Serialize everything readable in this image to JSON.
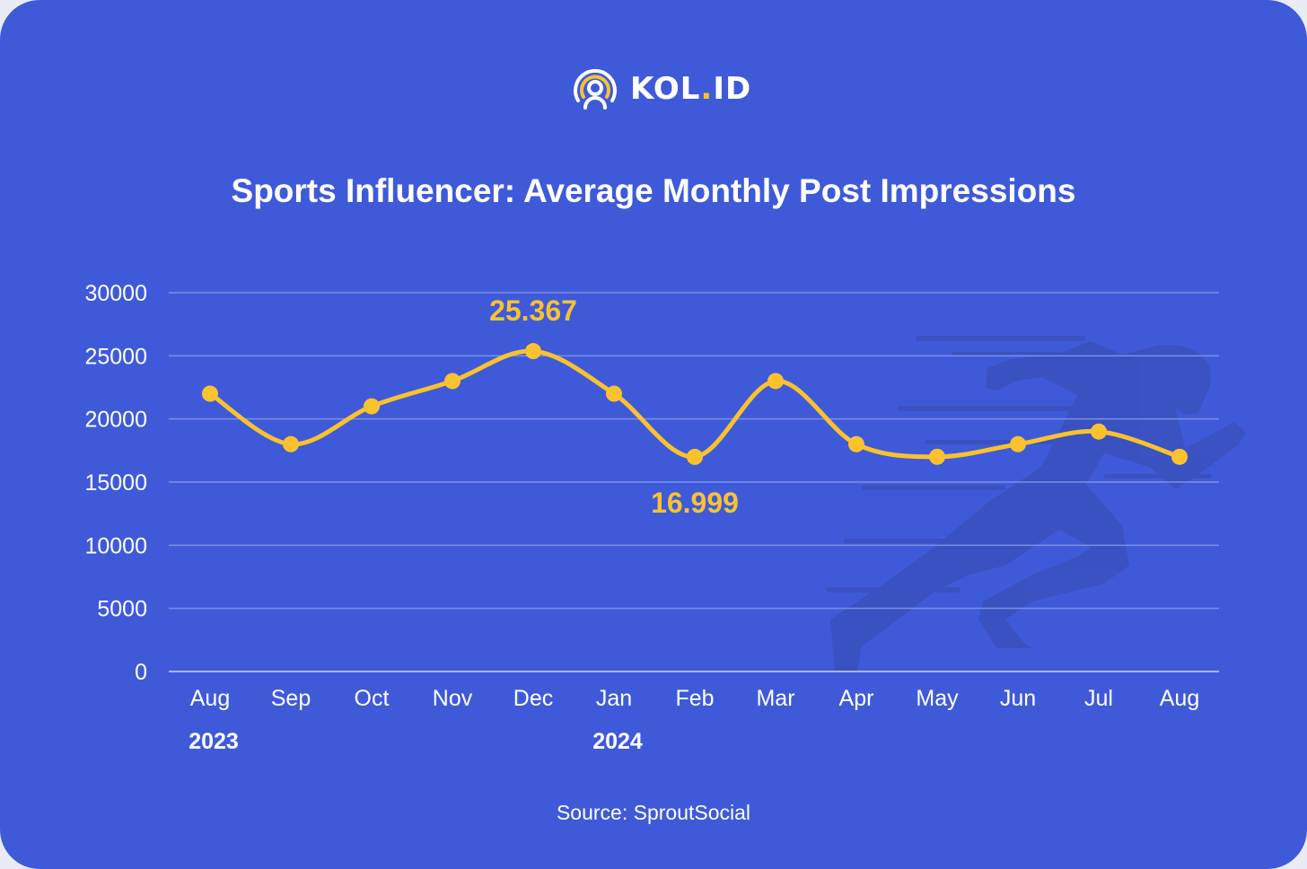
{
  "brand": {
    "name_main": "KOL",
    "name_dot": ".",
    "name_end": "ID",
    "logo_text": "KOL.ID"
  },
  "source": "Source: SproutSocial",
  "colors": {
    "background": "#3f5ad9",
    "line": "#f9c22e",
    "grid": "#7b8fe6",
    "text": "#ffffff",
    "silhouette": "#3a51bf"
  },
  "chart_data": {
    "type": "line",
    "title": "Sports Influencer: Average Monthly Post Impressions",
    "xlabel": "",
    "ylabel": "",
    "categories": [
      "Aug",
      "Sep",
      "Oct",
      "Nov",
      "Dec",
      "Jan",
      "Feb",
      "Mar",
      "Apr",
      "May",
      "Jun",
      "Jul",
      "Aug"
    ],
    "year_labels": [
      {
        "index": 0,
        "label": "2023"
      },
      {
        "index": 5,
        "label": "2024"
      }
    ],
    "series": [
      {
        "name": "Average Monthly Post Impressions",
        "values": [
          22000,
          18000,
          21000,
          23000,
          25367,
          22000,
          16999,
          23000,
          18000,
          17000,
          18000,
          19000,
          17000
        ]
      }
    ],
    "yticks": [
      0,
      5000,
      10000,
      15000,
      20000,
      25000,
      30000
    ],
    "ylim": [
      0,
      30000
    ],
    "grid": true,
    "annotations": [
      {
        "index": 4,
        "label": "25.367",
        "position": "above"
      },
      {
        "index": 6,
        "label": "16.999",
        "position": "below"
      }
    ]
  }
}
